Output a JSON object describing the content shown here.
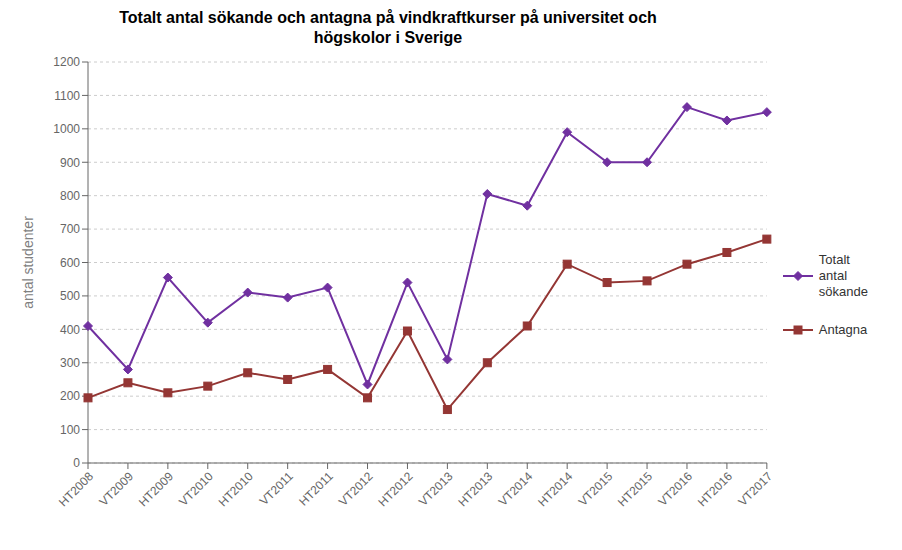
{
  "chart_data": {
    "type": "line",
    "title": "Totalt antal sökande och antagna på vindkraftkurser på universitet och\nhögskolor i Sverige",
    "ylabel": "antal studenter",
    "categories": [
      "HT2008",
      "VT2009",
      "HT2009",
      "VT2010",
      "HT2010",
      "VT2011",
      "HT2011",
      "VT2012",
      "HT2012",
      "VT2013",
      "HT2013",
      "VT2014",
      "HT2014",
      "VT2015",
      "HT2015",
      "VT2016",
      "HT2016",
      "VT2017"
    ],
    "series": [
      {
        "name": "Totalt\nantal\nsökande",
        "color": "#7030A0",
        "marker": "diamond",
        "values": [
          410,
          280,
          555,
          420,
          510,
          495,
          525,
          235,
          540,
          310,
          805,
          770,
          990,
          900,
          900,
          1065,
          1025,
          1050
        ]
      },
      {
        "name": "Antagna",
        "color": "#943634",
        "marker": "square",
        "values": [
          195,
          240,
          210,
          230,
          270,
          250,
          280,
          195,
          395,
          160,
          300,
          410,
          595,
          540,
          545,
          595,
          630,
          670
        ]
      }
    ],
    "ylim": [
      0,
      1200
    ],
    "yticks": [
      0,
      100,
      200,
      300,
      400,
      500,
      600,
      700,
      800,
      900,
      1000,
      1100,
      1200
    ],
    "grid": true,
    "legend": "right"
  }
}
